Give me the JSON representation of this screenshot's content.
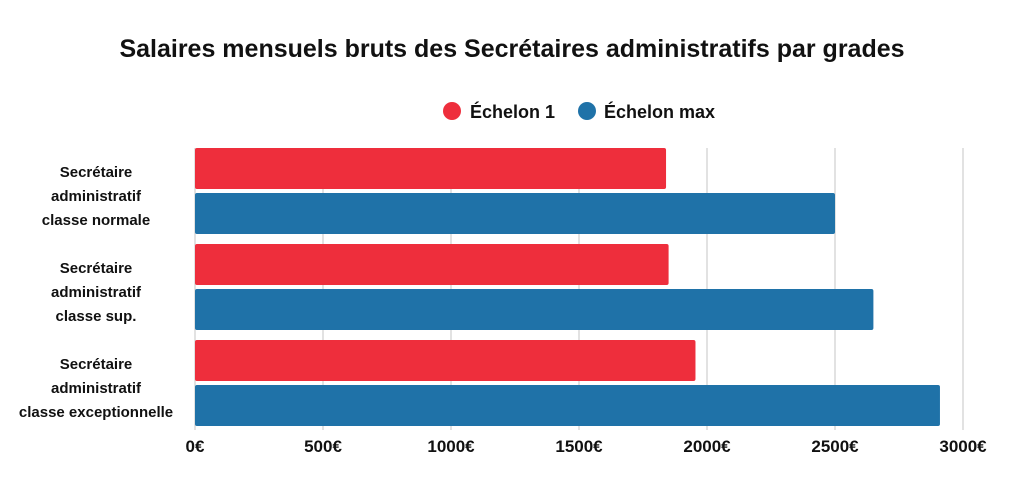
{
  "chart_data": {
    "type": "bar",
    "orientation": "horizontal",
    "title": "Salaires mensuels bruts des Secrétaires administratifs par grades",
    "categories": [
      [
        "Secrétaire",
        "administratif",
        "classe normale"
      ],
      [
        "Secrétaire",
        "administratif",
        "classe sup."
      ],
      [
        "Secrétaire",
        "administratif",
        "classe exceptionnelle"
      ]
    ],
    "series": [
      {
        "name": "Échelon 1",
        "color": "#ee2e3c",
        "values": [
          1840,
          1850,
          1955
        ]
      },
      {
        "name": "Échelon max",
        "color": "#1f72a8",
        "values": [
          2500,
          2650,
          2910
        ]
      }
    ],
    "xlim": [
      0,
      3000
    ],
    "xticks": [
      0,
      500,
      1000,
      1500,
      2000,
      2500,
      3000
    ],
    "xtick_labels": [
      "0€",
      "500€",
      "1000€",
      "1500€",
      "2000€",
      "2500€",
      "3000€"
    ],
    "grid": true,
    "legend_position": "top-center"
  }
}
